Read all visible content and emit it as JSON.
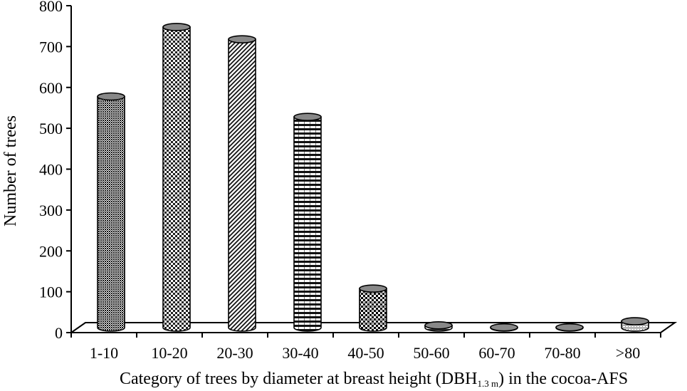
{
  "chart_data": {
    "type": "bar",
    "style": "3d-cylinder",
    "categories": [
      "1-10",
      "10-20",
      "20-30",
      "30-40",
      "40-50",
      "50-60",
      "60-70",
      "70-80",
      ">80"
    ],
    "values": [
      590,
      760,
      730,
      540,
      120,
      30,
      25,
      25,
      40
    ],
    "xlabel": "Category of trees by diameter at breast height (DBH",
    "xlabel_sub": "1.3 m",
    "xlabel_tail": ") in the cocoa-AFS",
    "ylabel": "Number of trees",
    "ylim": [
      0,
      800
    ],
    "yticks": [
      "0",
      "100",
      "200",
      "300",
      "400",
      "500",
      "600",
      "700",
      "800"
    ],
    "grid": false,
    "legend": "none",
    "colors": {
      "bar_outline": "#000000",
      "pattern_dark": "#1a1a1a",
      "pattern_light": "#ffffff",
      "background": "#ffffff"
    }
  }
}
